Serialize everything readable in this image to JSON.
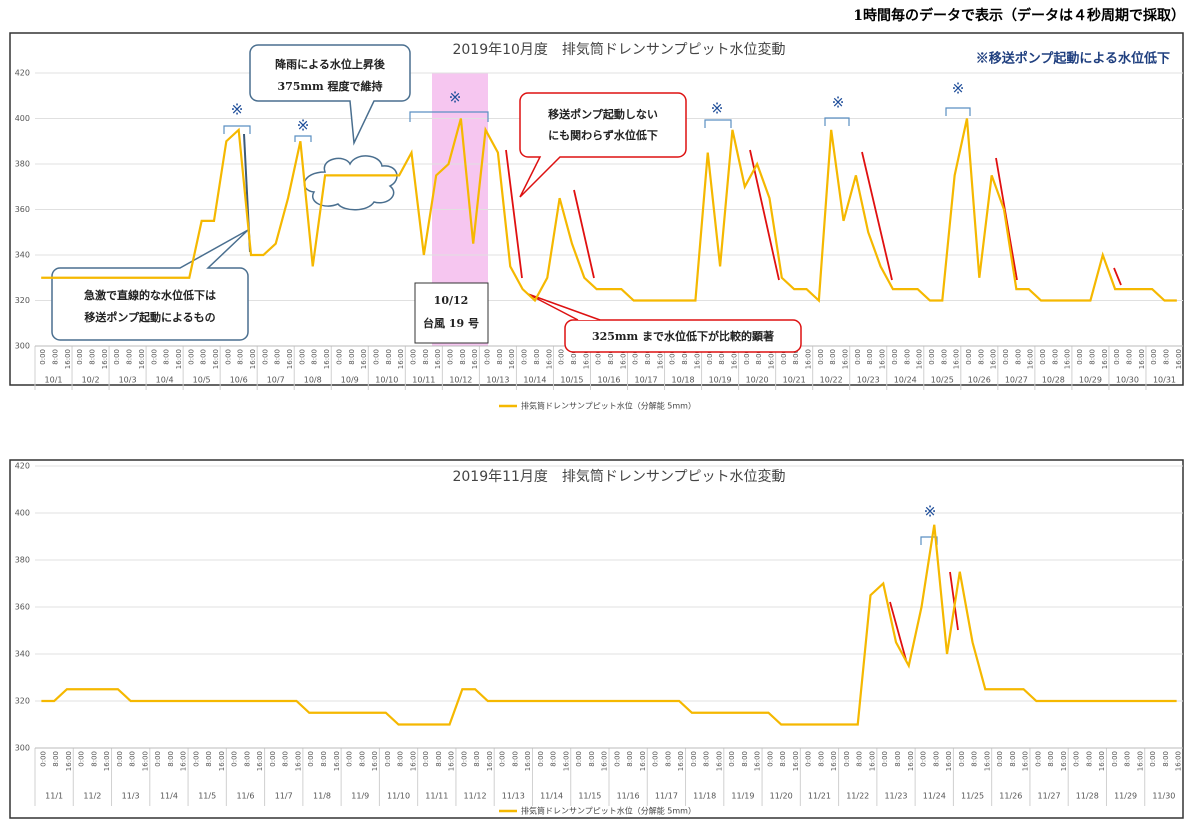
{
  "header": "1時間毎のデータで表示（データは４秒周期で採取）",
  "chart_data": [
    {
      "type": "line",
      "title": "2019年10月度　排気筒ドレンサンプピット水位変動",
      "categories": [
        "0:00",
        "8:00",
        "16:00",
        "0:00",
        "8:00",
        "16:00",
        "0:00",
        "8:00",
        "16:00",
        "0:00",
        "8:00",
        "16:00",
        "0:00",
        "8:00",
        "16:00",
        "0:00",
        "8:00",
        "16:00",
        "0:00",
        "8:00",
        "16:00",
        "0:00",
        "8:00",
        "16:00",
        "0:00",
        "8:00",
        "16:00",
        "0:00",
        "8:00",
        "16:00",
        "0:00",
        "8:00",
        "16:00",
        "0:00",
        "8:00",
        "16:00",
        "0:00",
        "8:00",
        "16:00",
        "0:00",
        "8:00",
        "16:00",
        "0:00",
        "8:00",
        "16:00",
        "0:00",
        "8:00",
        "16:00",
        "0:00",
        "8:00",
        "16:00",
        "0:00",
        "8:00",
        "16:00",
        "0:00",
        "8:00",
        "16:00",
        "0:00",
        "8:00",
        "16:00",
        "0:00",
        "8:00",
        "16:00",
        "0:00",
        "8:00",
        "16:00",
        "0:00",
        "8:00",
        "16:00",
        "0:00",
        "8:00",
        "16:00",
        "0:00",
        "8:00",
        "16:00",
        "0:00",
        "8:00",
        "16:00",
        "0:00",
        "8:00",
        "16:00",
        "0:00",
        "8:00",
        "16:00",
        "0:00",
        "8:00",
        "16:00",
        "0:00",
        "8:00",
        "16:00",
        "0:00",
        "8:00",
        "16:00"
      ],
      "groups": [
        "10/1",
        "10/2",
        "10/3",
        "10/4",
        "10/5",
        "10/6",
        "10/7",
        "10/8",
        "10/9",
        "10/10",
        "10/11",
        "10/12",
        "10/13",
        "10/14",
        "10/15",
        "10/16",
        "10/17",
        "10/18",
        "10/19",
        "10/20",
        "10/21",
        "10/22",
        "10/23",
        "10/24",
        "10/25",
        "10/26",
        "10/27",
        "10/28",
        "10/29",
        "10/30",
        "10/31"
      ],
      "series": [
        {
          "name": "排気筒ドレンサンプピット水位（分解能 5mm）",
          "color": "#f5b800",
          "values": [
            330,
            330,
            330,
            330,
            330,
            330,
            330,
            330,
            330,
            330,
            330,
            330,
            330,
            355,
            355,
            390,
            395,
            340,
            340,
            345,
            365,
            390,
            335,
            375,
            375,
            375,
            375,
            375,
            375,
            375,
            385,
            340,
            375,
            380,
            400,
            345,
            395,
            385,
            335,
            325,
            320,
            330,
            365,
            345,
            330,
            325,
            325,
            325,
            320,
            320,
            320,
            320,
            320,
            320,
            385,
            335,
            395,
            370,
            380,
            365,
            330,
            325,
            325,
            320,
            395,
            355,
            375,
            350,
            335,
            325,
            325,
            325,
            320,
            320,
            375,
            400,
            330,
            375,
            360,
            325,
            325,
            320,
            320,
            320,
            320,
            320,
            340,
            325,
            325,
            325,
            325,
            320,
            320
          ]
        }
      ],
      "ylim": [
        300,
        420
      ],
      "yticks": [
        300,
        320,
        340,
        360,
        380,
        400,
        420
      ],
      "grid": true,
      "annotations": {
        "note": "※移送ポンプ起動による水位低下",
        "rain": [
          "降雨による水位上昇後",
          "375mm 程度で維持"
        ],
        "no_pump": [
          "移送ポンプ起動しない",
          "にも関わらず水位低下"
        ],
        "sudden": [
          "急激で直線的な水位低下は",
          "移送ポンプ起動によるもの"
        ],
        "typhoon": [
          "10/12",
          "台風 19 号"
        ],
        "drop": "325mm まで水位低下が比較的顕著",
        "pump_marks": [
          "※",
          "※",
          "※",
          "※",
          "※",
          "※"
        ]
      }
    },
    {
      "type": "line",
      "title": "2019年11月度　排気筒ドレンサンプピット水位変動",
      "categories": [
        "0:00",
        "8:00",
        "16:00",
        "0:00",
        "8:00",
        "16:00",
        "0:00",
        "8:00",
        "16:00",
        "0:00",
        "8:00",
        "16:00",
        "0:00",
        "8:00",
        "16:00",
        "0:00",
        "8:00",
        "16:00",
        "0:00",
        "8:00",
        "16:00",
        "0:00",
        "8:00",
        "16:00",
        "0:00",
        "8:00",
        "16:00",
        "0:00",
        "8:00",
        "16:00",
        "0:00",
        "8:00",
        "16:00",
        "0:00",
        "8:00",
        "16:00",
        "0:00",
        "8:00",
        "16:00",
        "0:00",
        "8:00",
        "16:00",
        "0:00",
        "8:00",
        "16:00",
        "0:00",
        "8:00",
        "16:00",
        "0:00",
        "8:00",
        "16:00",
        "0:00",
        "8:00",
        "16:00",
        "0:00",
        "8:00",
        "16:00",
        "0:00",
        "8:00",
        "16:00",
        "0:00",
        "8:00",
        "16:00",
        "0:00",
        "8:00",
        "16:00",
        "0:00",
        "8:00",
        "16:00",
        "0:00",
        "8:00",
        "16:00",
        "0:00",
        "8:00",
        "16:00",
        "0:00",
        "8:00",
        "16:00",
        "0:00",
        "8:00",
        "16:00",
        "0:00",
        "8:00",
        "16:00",
        "0:00",
        "8:00",
        "16:00",
        "0:00",
        "8:00",
        "16:00"
      ],
      "groups": [
        "11/1",
        "11/2",
        "11/3",
        "11/4",
        "11/5",
        "11/6",
        "11/7",
        "11/8",
        "11/9",
        "11/10",
        "11/11",
        "11/12",
        "11/13",
        "11/14",
        "11/15",
        "11/16",
        "11/17",
        "11/18",
        "11/19",
        "11/20",
        "11/21",
        "11/22",
        "11/23",
        "11/24",
        "11/25",
        "11/26",
        "11/27",
        "11/28",
        "11/29",
        "11/30"
      ],
      "series": [
        {
          "name": "排気筒ドレンサンプピット水位（分解能 5mm）",
          "color": "#f5b800",
          "values": [
            320,
            320,
            325,
            325,
            325,
            325,
            325,
            320,
            320,
            320,
            320,
            320,
            320,
            320,
            320,
            320,
            320,
            320,
            320,
            320,
            320,
            315,
            315,
            315,
            315,
            315,
            315,
            315,
            310,
            310,
            310,
            310,
            310,
            325,
            325,
            320,
            320,
            320,
            320,
            320,
            320,
            320,
            320,
            320,
            320,
            320,
            320,
            320,
            320,
            320,
            320,
            315,
            315,
            315,
            315,
            315,
            315,
            315,
            310,
            310,
            310,
            310,
            310,
            310,
            310,
            365,
            370,
            345,
            335,
            360,
            395,
            340,
            375,
            345,
            325,
            325,
            325,
            325,
            320,
            320,
            320,
            320,
            320,
            320,
            320,
            320,
            320,
            320,
            320,
            320
          ]
        }
      ],
      "ylim": [
        300,
        420
      ],
      "yticks": [
        300,
        320,
        340,
        360,
        380,
        400,
        420
      ],
      "grid": true,
      "annotations": {
        "pump_marks": [
          "※"
        ]
      }
    }
  ]
}
